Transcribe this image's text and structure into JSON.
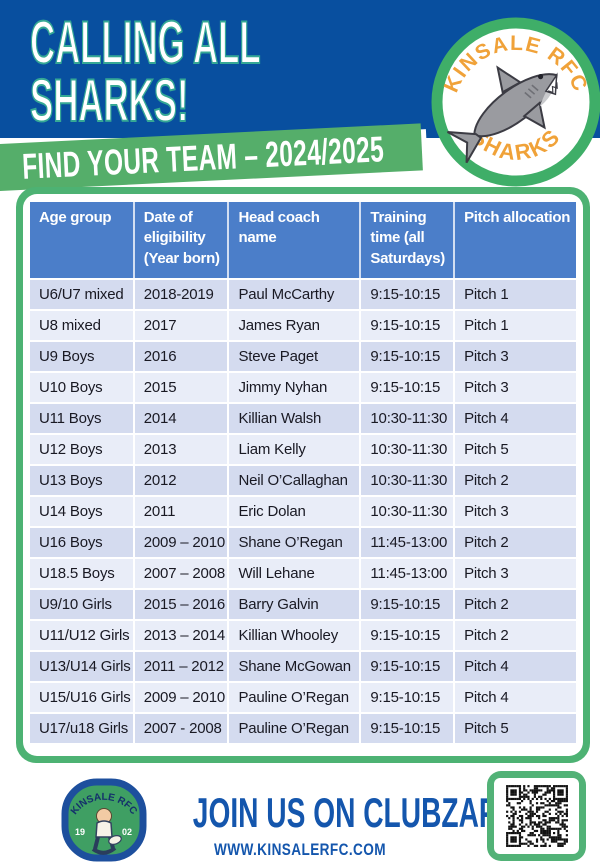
{
  "header": {
    "title_line1": "CALLING ALL",
    "title_line2": "SHARKS!",
    "banner_text": "FIND YOUR TEAM – 2024/2025"
  },
  "logo": {
    "top_text": "KINSALE RFC",
    "bottom_text": "SHARKS"
  },
  "table": {
    "columns": [
      "Age group",
      "Date of eligibility (Year born)",
      "Head coach name",
      "Training time (all Saturdays)",
      "Pitch allocation"
    ],
    "rows": [
      [
        "U6/U7 mixed",
        "2018-2019",
        "Paul McCarthy",
        "9:15-10:15",
        "Pitch 1"
      ],
      [
        "U8 mixed",
        "2017",
        "James Ryan",
        "9:15-10:15",
        "Pitch 1"
      ],
      [
        "U9 Boys",
        "2016",
        "Steve Paget",
        "9:15-10:15",
        "Pitch 3"
      ],
      [
        "U10 Boys",
        "2015",
        "Jimmy Nyhan",
        "9:15-10:15",
        "Pitch 3"
      ],
      [
        "U11 Boys",
        "2014",
        "Killian Walsh",
        "10:30-11:30",
        "Pitch 4"
      ],
      [
        "U12 Boys",
        "2013",
        "Liam Kelly",
        "10:30-11:30",
        "Pitch 5"
      ],
      [
        "U13 Boys",
        "2012",
        "Neil O’Callaghan",
        "10:30-11:30",
        "Pitch 2"
      ],
      [
        "U14 Boys",
        "2011",
        "Eric Dolan",
        "10:30-11:30",
        "Pitch 3"
      ],
      [
        "U16 Boys",
        "2009 – 2010",
        "Shane O’Regan",
        "11:45-13:00",
        "Pitch 2"
      ],
      [
        "U18.5 Boys",
        "2007 – 2008",
        "Will Lehane",
        "11:45-13:00",
        "Pitch 3"
      ],
      [
        "U9/10 Girls",
        "2015 – 2016",
        "Barry Galvin",
        "9:15-10:15",
        "Pitch 2"
      ],
      [
        "U11/U12 Girls",
        "2013 – 2014",
        "Killian Whooley",
        "9:15-10:15",
        "Pitch 2"
      ],
      [
        "U13/U14 Girls",
        "2011 – 2012",
        "Shane McGowan",
        "9:15-10:15",
        "Pitch 4"
      ],
      [
        "U15/U16 Girls",
        "2009 – 2010",
        "Pauline O’Regan",
        "9:15-10:15",
        "Pitch 4"
      ],
      [
        "U17/u18 Girls",
        "2007 - 2008",
        "Pauline O’Regan",
        "9:15-10:15",
        "Pitch 5"
      ]
    ]
  },
  "footer": {
    "cta": "JOIN US ON CLUBZAP>>",
    "website": "WWW.KINSALERFC.COM",
    "crest": {
      "top_text": "KINSALE RFC",
      "year_left": "19",
      "year_right": "02"
    }
  },
  "colors": {
    "band_blue": "#084f9f",
    "title_outline_teal": "#35a895",
    "banner_green": "#55ae6a",
    "frame_green": "#4db273",
    "table_header_blue": "#4b7ec9",
    "row_dark": "#d4dbef",
    "row_light": "#e9edf8",
    "footer_blue": "#1456ad",
    "logo_orange": "#f0a239"
  }
}
